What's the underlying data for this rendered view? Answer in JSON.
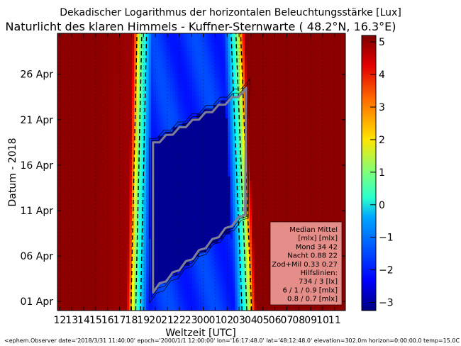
{
  "chart_data": {
    "type": "heatmap",
    "suptitle": "Dekadischer Logarithmus der horizontalen Beleuchtungsstärke [Lux]",
    "title": "Naturlicht des klaren Himmels - Kuffner-Sternwarte ( 48.2°N, 16.3°E)",
    "xlabel": "Weltzeit [UTC]",
    "ylabel": "Datum - 2018",
    "x_tick_labels": [
      "12",
      "13",
      "14",
      "15",
      "16",
      "17",
      "18",
      "19",
      "20",
      "21",
      "22",
      "23",
      "00",
      "01",
      "02",
      "03",
      "04",
      "05",
      "06",
      "07",
      "08",
      "09",
      "10",
      "11"
    ],
    "y_tick_labels": [
      "01 Apr",
      "06 Apr",
      "11 Apr",
      "16 Apr",
      "21 Apr",
      "26 Apr"
    ],
    "y_tick_days": [
      1,
      6,
      11,
      16,
      21,
      26
    ],
    "date_range": [
      "2018-03-31",
      "2018-04-30"
    ],
    "time_range_hours": [
      11.8,
      35.9
    ],
    "colorbar": {
      "ticks": [
        "5",
        "4",
        "3",
        "2",
        "1",
        "0",
        "−1",
        "−2",
        "−3"
      ],
      "tick_values": [
        5,
        4,
        3,
        2,
        1,
        0,
        -1,
        -2,
        -3
      ],
      "range": [
        -3.25,
        5.2
      ],
      "colormap": "jet"
    },
    "sunset_utc_hours": {
      "start": 18.1,
      "end": 18.6
    },
    "sunrise_utc_hours": {
      "start": 27.9,
      "end": 27.0
    },
    "night_region": {
      "description": "deep blue moonless night region",
      "outline_points": [
        [
          19.7,
          2
        ],
        [
          27.6,
          24.5
        ]
      ]
    },
    "legend": {
      "lines": [
        "Median Mittel",
        "[mlx]  [mlx]",
        "Mond   34  42",
        "Nacht 0.88  22",
        "Zod+Mil 0.33  0.27",
        "Hilfslinien:",
        "734 / 3  [lx]",
        "6 /  1 / 0.9 [mlx]",
        "0.8 / 0.7 [mlx]"
      ],
      "placement": "bottom-right",
      "background": "#f4a6a0"
    },
    "footer": "<ephem.Observer date='2018/3/31 11:40:00' epoch='2000/1/1 12:00:00' lon='16:17:48.0' lat='48:12:48.0' elevation=302.0m horizon=0:00:00.0 temp=15.0C pres"
  }
}
